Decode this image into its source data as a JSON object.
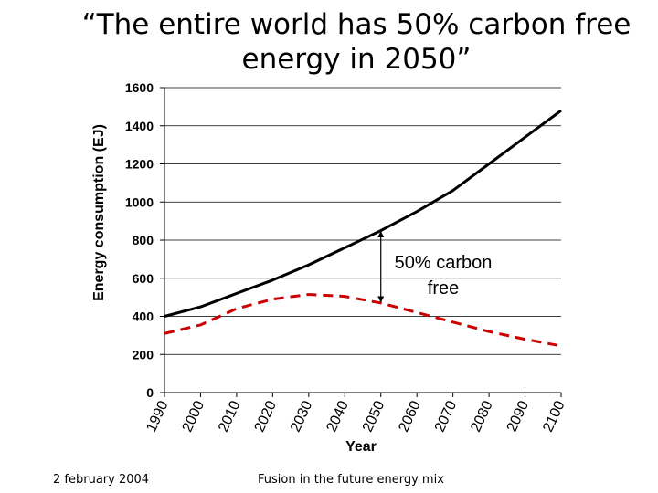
{
  "slide": {
    "title_line1": "“The entire world has 50% carbon free",
    "title_line2": "energy in 2050”",
    "footer_date": "2 february 2004",
    "footer_caption": "Fusion in the future energy mix"
  },
  "chart_data": {
    "type": "line",
    "title": "",
    "xlabel": "Year",
    "ylabel": "Energy consumption (EJ)",
    "xlim": [
      1990,
      2100
    ],
    "ylim": [
      0,
      1600
    ],
    "x_ticks": [
      1990,
      2000,
      2010,
      2020,
      2030,
      2040,
      2050,
      2060,
      2070,
      2080,
      2090,
      2100
    ],
    "y_ticks": [
      0,
      200,
      400,
      600,
      800,
      1000,
      1200,
      1400,
      1600
    ],
    "grid": "horizontal",
    "legend": "none",
    "series": [
      {
        "style": "solid",
        "color": "#000000",
        "x": [
          1990,
          2000,
          2010,
          2020,
          2030,
          2040,
          2050,
          2060,
          2070,
          2080,
          2090,
          2100
        ],
        "values": [
          400,
          450,
          520,
          590,
          670,
          760,
          850,
          950,
          1060,
          1200,
          1340,
          1480
        ]
      },
      {
        "style": "dashed",
        "color": "#cc0000",
        "x": [
          1990,
          2000,
          2010,
          2020,
          2030,
          2040,
          2050,
          2060,
          2070,
          2080,
          2090,
          2100
        ],
        "values": [
          310,
          355,
          440,
          490,
          515,
          505,
          470,
          420,
          370,
          320,
          280,
          245
        ]
      }
    ],
    "annotation": {
      "text_line1": "50% carbon",
      "text_line2": "free",
      "x": 2050,
      "y_top": 850,
      "y_bottom": 470
    }
  }
}
